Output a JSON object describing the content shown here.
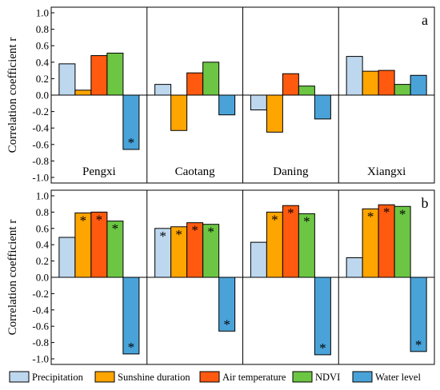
{
  "chart_data": [
    {
      "type": "bar",
      "panel_label": "a",
      "ylabel": "Correlation coefficient r",
      "ylim": [
        -1.0,
        1.0
      ],
      "yticks": [
        "-1.0",
        "-0.8",
        "-0.6",
        "-0.4",
        "-0.2",
        "0.0",
        "0.2",
        "0.4",
        "0.6",
        "0.8",
        "1.0"
      ],
      "groups": [
        "Pengxi",
        "Caotang",
        "Daning",
        "Xiangxi"
      ],
      "series": [
        {
          "name": "Precipitation",
          "color": "#bdd7ee",
          "values": [
            0.38,
            0.13,
            -0.18,
            0.47
          ]
        },
        {
          "name": "Sunshine duration",
          "color": "#ffa500",
          "values": [
            0.06,
            -0.43,
            -0.45,
            0.29
          ]
        },
        {
          "name": "Air temperature",
          "color": "#ff5a10",
          "values": [
            0.48,
            0.27,
            0.26,
            0.3
          ]
        },
        {
          "name": "NDVI",
          "color": "#6cc644",
          "values": [
            0.51,
            0.4,
            0.11,
            0.13
          ]
        },
        {
          "name": "Water level",
          "color": "#4aa3d8",
          "values": [
            -0.66,
            -0.24,
            -0.29,
            0.24
          ]
        }
      ],
      "significance": [
        [
          false,
          false,
          false,
          false,
          true
        ],
        [
          false,
          false,
          false,
          false,
          false
        ],
        [
          false,
          false,
          false,
          false,
          false
        ],
        [
          false,
          false,
          false,
          false,
          false
        ]
      ]
    },
    {
      "type": "bar",
      "panel_label": "b",
      "ylabel": "Correlation coefficient r",
      "ylim": [
        -1.0,
        1.0
      ],
      "yticks": [
        "-1.0",
        "-0.8",
        "-0.6",
        "-0.4",
        "-0.2",
        "0.0",
        "0.2",
        "0.4",
        "0.6",
        "0.8",
        "1.0"
      ],
      "groups": [
        "Pengxi",
        "Caotang",
        "Daning",
        "Xiangxi"
      ],
      "series": [
        {
          "name": "Precipitation",
          "color": "#bdd7ee",
          "values": [
            0.49,
            0.6,
            0.43,
            0.24
          ]
        },
        {
          "name": "Sunshine duration",
          "color": "#ffa500",
          "values": [
            0.79,
            0.62,
            0.8,
            0.84
          ]
        },
        {
          "name": "Air temperature",
          "color": "#ff5a10",
          "values": [
            0.8,
            0.67,
            0.88,
            0.89
          ]
        },
        {
          "name": "NDVI",
          "color": "#6cc644",
          "values": [
            0.69,
            0.65,
            0.78,
            0.87
          ]
        },
        {
          "name": "Water level",
          "color": "#4aa3d8",
          "values": [
            -0.94,
            -0.66,
            -0.95,
            -0.91
          ]
        }
      ],
      "significance": [
        [
          false,
          true,
          true,
          true,
          true
        ],
        [
          true,
          true,
          true,
          true,
          true
        ],
        [
          false,
          true,
          true,
          true,
          true
        ],
        [
          false,
          true,
          true,
          true,
          true
        ]
      ]
    }
  ],
  "significance_marker": "*",
  "legend": [
    {
      "name": "Precipitation",
      "color": "#bdd7ee"
    },
    {
      "name": "Sunshine duration",
      "color": "#ffa500"
    },
    {
      "name": "Air temperature",
      "color": "#ff5a10"
    },
    {
      "name": "NDVI",
      "color": "#6cc644"
    },
    {
      "name": "Water level",
      "color": "#4aa3d8"
    }
  ]
}
